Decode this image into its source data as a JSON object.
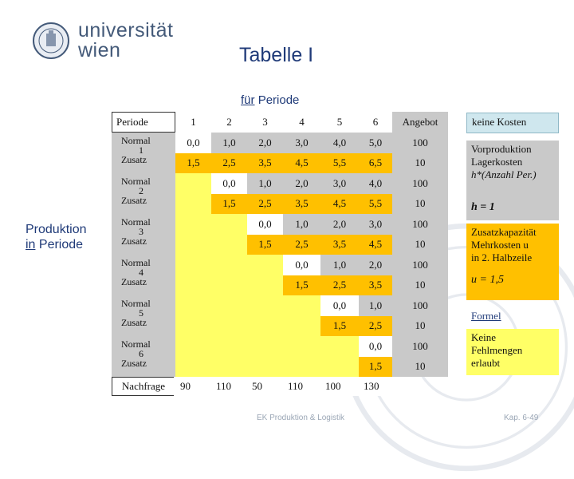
{
  "logo": {
    "line1": "universität",
    "line2": "wien"
  },
  "title": "Tabelle I",
  "column_header": {
    "prefix": "für",
    "rest": "Periode"
  },
  "row_header": {
    "line1": "Produktion",
    "prefix": "in",
    "rest": "Periode"
  },
  "table": {
    "corner": "Periode",
    "periods": [
      "1",
      "2",
      "3",
      "4",
      "5",
      "6"
    ],
    "angebot_label": "Angebot",
    "rows": [
      {
        "type": "Normal",
        "num": "1",
        "values": [
          "0,0",
          "1,0",
          "2,0",
          "3,0",
          "4,0",
          "5,0"
        ],
        "angebot": "100"
      },
      {
        "type": "Zusatz",
        "num": "",
        "values": [
          "1,5",
          "2,5",
          "3,5",
          "4,5",
          "5,5",
          "6,5"
        ],
        "angebot": "10"
      },
      {
        "type": "Normal",
        "num": "2",
        "values": [
          "",
          "0,0",
          "1,0",
          "2,0",
          "3,0",
          "4,0"
        ],
        "angebot": "100"
      },
      {
        "type": "Zusatz",
        "num": "",
        "values": [
          "",
          "1,5",
          "2,5",
          "3,5",
          "4,5",
          "5,5"
        ],
        "angebot": "10"
      },
      {
        "type": "Normal",
        "num": "3",
        "values": [
          "",
          "",
          "0,0",
          "1,0",
          "2,0",
          "3,0"
        ],
        "angebot": "100"
      },
      {
        "type": "Zusatz",
        "num": "",
        "values": [
          "",
          "",
          "1,5",
          "2,5",
          "3,5",
          "4,5"
        ],
        "angebot": "10"
      },
      {
        "type": "Normal",
        "num": "4",
        "values": [
          "",
          "",
          "",
          "0,0",
          "1,0",
          "2,0"
        ],
        "angebot": "100"
      },
      {
        "type": "Zusatz",
        "num": "",
        "values": [
          "",
          "",
          "",
          "1,5",
          "2,5",
          "3,5"
        ],
        "angebot": "10"
      },
      {
        "type": "Normal",
        "num": "5",
        "values": [
          "",
          "",
          "",
          "",
          "0,0",
          "1,0"
        ],
        "angebot": "100"
      },
      {
        "type": "Zusatz",
        "num": "",
        "values": [
          "",
          "",
          "",
          "",
          "1,5",
          "2,5"
        ],
        "angebot": "10"
      },
      {
        "type": "Normal",
        "num": "6",
        "values": [
          "",
          "",
          "",
          "",
          "",
          "0,0"
        ],
        "angebot": "100"
      },
      {
        "type": "Zusatz",
        "num": "",
        "values": [
          "",
          "",
          "",
          "",
          "",
          "1,5"
        ],
        "angebot": "10"
      }
    ],
    "nachfrage_label": "Nachfrage",
    "nachfrage": [
      "90",
      "110",
      "50",
      "110",
      "100",
      "130"
    ]
  },
  "side": {
    "keine_kosten": "keine Kosten",
    "vorproduktion": [
      "Vorproduktion",
      "Lagerkosten",
      "h*(Anzahl Per.)"
    ],
    "h_value": "h = 1",
    "zusatz": [
      "Zusatzkapazität",
      "Mehrkosten u",
      "in 2. Halbzeile"
    ],
    "u_value": "u = 1,5",
    "formel": "Formel",
    "fehlmengen": [
      "Keine",
      "Fehlmengen",
      "erlaubt"
    ]
  },
  "footer": "EK Produktion & Logistik",
  "page_number": "Kap. 6-49",
  "colors": {
    "gray": "#c9c9c9",
    "yellow": "#ffff66",
    "orange": "#ffc000",
    "cyan": "#cfe7ee",
    "blue": "#1f3a78"
  }
}
